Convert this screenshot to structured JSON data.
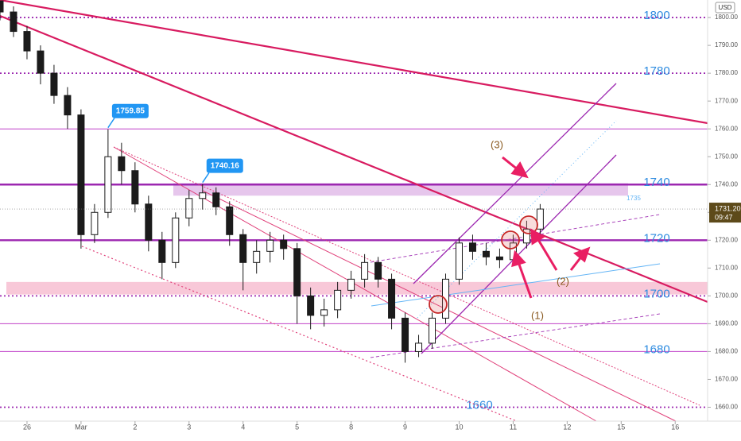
{
  "chart_data": {
    "type": "candlestick",
    "currency": "USD",
    "x": [
      -0.5,
      -0.25,
      0,
      0.25,
      0.5,
      0.75,
      1,
      1.25,
      1.5,
      1.75,
      2,
      2.25,
      2.5,
      2.75,
      3,
      3.25,
      3.5,
      3.75,
      4,
      4.25,
      4.5,
      4.75,
      5,
      5.25,
      5.5,
      5.75,
      6,
      6.25,
      6.5,
      6.75,
      7,
      7.25,
      7.5,
      7.75,
      8,
      8.25,
      8.5,
      8.75,
      9,
      9.25,
      9.5
    ],
    "open": [
      1806,
      1802,
      1795,
      1788,
      1780,
      1772,
      1765,
      1722,
      1730,
      1750,
      1745,
      1733,
      1720,
      1712,
      1728,
      1735,
      1737,
      1732,
      1722,
      1712,
      1716,
      1720,
      1717,
      1700,
      1693,
      1695,
      1702,
      1706,
      1712,
      1706,
      1692,
      1680,
      1683,
      1692,
      1706,
      1719,
      1716,
      1714,
      1713,
      1719,
      1724
    ],
    "high": [
      1806,
      1804,
      1797,
      1790,
      1783,
      1775,
      1767,
      1733,
      1759.85,
      1755,
      1748,
      1736,
      1723,
      1730,
      1738,
      1740.16,
      1739,
      1734,
      1724,
      1720,
      1723,
      1722,
      1719,
      1703,
      1699,
      1705,
      1709,
      1715,
      1714,
      1708,
      1694,
      1686,
      1694,
      1708,
      1721,
      1722,
      1719,
      1717,
      1722,
      1727,
      1733
    ],
    "low": [
      1799,
      1793,
      1785,
      1776,
      1769,
      1760,
      1717,
      1719,
      1728,
      1740,
      1730,
      1716,
      1706,
      1710,
      1725,
      1731,
      1729,
      1718,
      1702,
      1708,
      1712,
      1713,
      1690,
      1688,
      1689,
      1692,
      1699,
      1703,
      1703,
      1688,
      1676,
      1678,
      1681,
      1690,
      1704,
      1713,
      1711,
      1710,
      1711,
      1717,
      1722
    ],
    "close": [
      1802,
      1795,
      1788,
      1780,
      1772,
      1765,
      1722,
      1730,
      1750,
      1745,
      1733,
      1720,
      1712,
      1728,
      1735,
      1737,
      1732,
      1722,
      1712,
      1716,
      1720,
      1717,
      1700,
      1693,
      1695,
      1702,
      1706,
      1712,
      1706,
      1692,
      1680,
      1683,
      1692,
      1706,
      1719,
      1716,
      1714,
      1713,
      1719,
      1724,
      1731.2
    ],
    "up_color": "#1b1b1b",
    "down_color": "#1b1b1b",
    "xlim": [
      -0.5,
      12.6
    ],
    "xticks": [
      {
        "value": 0,
        "label": "26"
      },
      {
        "value": 1,
        "label": "Mar"
      },
      2,
      3,
      4,
      5,
      {
        "value": 6,
        "label": "8"
      },
      {
        "value": 7,
        "label": "9"
      },
      {
        "value": 8,
        "label": "10"
      },
      {
        "value": 9,
        "label": "11"
      },
      {
        "value": 10,
        "label": "12"
      },
      {
        "value": 11,
        "label": "15"
      },
      {
        "value": 12,
        "label": "16"
      }
    ],
    "ylim": [
      1655,
      1806.3
    ],
    "yticks": [
      {
        "value": 1660,
        "label": "1660.00"
      },
      {
        "value": 1670,
        "label": "1670.00"
      },
      {
        "value": 1680,
        "label": "1680.00"
      },
      {
        "value": 1690,
        "label": "1690.00"
      },
      {
        "value": 1700,
        "label": "1700.00"
      },
      {
        "value": 1710,
        "label": "1710.00"
      },
      {
        "value": 1720,
        "label": "1720.00"
      },
      {
        "value": 1730,
        "label": "1730.00"
      },
      {
        "value": 1740,
        "label": "1740.00"
      },
      {
        "value": 1750,
        "label": "1750.00"
      },
      {
        "value": 1760,
        "label": "1760.00"
      },
      {
        "value": 1770,
        "label": "1770.00"
      },
      {
        "value": 1780,
        "label": "1780.00"
      },
      {
        "value": 1790,
        "label": "1790.00"
      },
      {
        "value": 1800,
        "label": "1800.00"
      }
    ],
    "last_price": {
      "value": 1731.2,
      "label": "1731.20"
    },
    "countdown": "09:47",
    "levels": [
      {
        "value": 1800,
        "label": "1800",
        "style": "dotted"
      },
      {
        "value": 1780,
        "label": "1780",
        "style": "dotted"
      },
      {
        "value": 1760,
        "style": "thin"
      },
      {
        "value": 1740,
        "label": "1740",
        "style": "thick"
      },
      {
        "value": 1720,
        "label": "1720",
        "style": "thick"
      },
      {
        "value": 1700,
        "label": "1700",
        "style": "dotted"
      },
      {
        "value": 1690,
        "style": "thin"
      },
      {
        "value": 1680,
        "label": "1680",
        "style": "thin"
      },
      {
        "value": 1660,
        "label": "1660",
        "style": "dotted"
      }
    ],
    "zones": [
      {
        "from": 1736,
        "to": 1740.5,
        "color": "#e6c6ec"
      },
      {
        "from": 1700.5,
        "to": 1705,
        "color": "#f8c8d8"
      }
    ],
    "callouts": [
      1759.85,
      1740.16
    ],
    "note_level": 1735,
    "annotations": [
      "(1)",
      "(2)",
      "(3)"
    ]
  }
}
